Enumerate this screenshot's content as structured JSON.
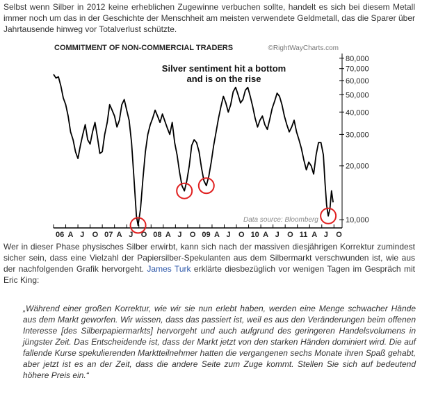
{
  "article": {
    "paragraph1": "Selbst wenn Silber in 2012 keine erheblichen Zugewinne verbuchen sollte, handelt es sich bei diesem Metall immer noch um das in der Geschichte der Menschheit am meisten verwendete Geldmetall, das die Sparer über Jahrtausende hinweg vor Totalverlust schützte.",
    "paragraph2_before": "Wer in dieser Phase physisches Silber erwirbt, kann sich nach der massiven diesjährigen Korrektur zumindest sicher sein, dass eine Vielzahl der Papiersilber-Spekulanten aus dem Silbermarkt verschwunden ist, wie aus der nachfolgenden Grafik hervorgeht.",
    "paragraph2_link": "James Turk",
    "paragraph2_after": "erklärte diesbezüglich vor wenigen Tagen im Gespräch mit Eric King:",
    "quote": "„Während einer großen Korrektur, wie wir sie nun erlebt haben, werden eine Menge schwacher Hände aus dem Markt geworfen. Wir wissen, dass das passiert ist, weil es aus den Veränderungen beim offenen Interesse [des Silberpapiermarkts] hervorgeht und auch aufgrund des geringeren Handelsvolumens in jüngster Zeit. Das Entscheidende ist, dass der Markt jetzt von den starken Händen dominiert wird. Die auf fallende Kurse spekulierenden Marktteilnehmer hatten die vergangenen sechs Monate ihren Spaß gehabt, aber jetzt ist es an der Zeit, dass die andere Seite zum Zuge kommt. Stellen Sie sich auf bedeutend höhere Preis ein.“"
  },
  "chart_data": {
    "type": "line",
    "title": "COMMITMENT OF  NON-COMMERCIAL TRADERS",
    "credit": "©RightWayCharts.com",
    "annotation_line1": "Silver sentiment hit a bottom",
    "annotation_line2": "and is on the rise",
    "source": "Data source: Bloomberg",
    "y_scale": "log",
    "ylim": [
      9000,
      85000
    ],
    "y_ticks": [
      10000,
      20000,
      30000,
      40000,
      50000,
      60000,
      70000,
      80000
    ],
    "y_tick_labels": [
      "10,000",
      "20,000",
      "30,000",
      "40,000",
      "50,000",
      "60,000",
      "70,000",
      "80,000"
    ],
    "x_tick_labels": [
      "06",
      "A",
      "J",
      "O",
      "07",
      "A",
      "J",
      "O",
      "08",
      "A",
      "J",
      "O",
      "09",
      "A",
      "J",
      "O",
      "10",
      "A",
      "J",
      "O",
      "11",
      "A",
      "J",
      "O"
    ],
    "xlim": [
      0,
      71
    ],
    "x_unit": "months since Jan 2006",
    "series": [
      {
        "values": [
          [
            0,
            65000
          ],
          [
            0.6,
            62000
          ],
          [
            1.2,
            63000
          ],
          [
            1.8,
            56000
          ],
          [
            2.4,
            48000
          ],
          [
            3,
            44000
          ],
          [
            3.6,
            38000
          ],
          [
            4.2,
            31000
          ],
          [
            4.8,
            28000
          ],
          [
            5.4,
            24000
          ],
          [
            6,
            22000
          ],
          [
            6.6,
            26000
          ],
          [
            7.2,
            30000
          ],
          [
            7.8,
            34000
          ],
          [
            8.4,
            28000
          ],
          [
            9,
            26500
          ],
          [
            9.6,
            31000
          ],
          [
            10.2,
            35000
          ],
          [
            10.8,
            29000
          ],
          [
            11.4,
            23500
          ],
          [
            12,
            24000
          ],
          [
            12.6,
            30000
          ],
          [
            13.2,
            35000
          ],
          [
            13.8,
            44000
          ],
          [
            14.4,
            41000
          ],
          [
            15,
            38000
          ],
          [
            15.6,
            33000
          ],
          [
            16.2,
            36000
          ],
          [
            16.8,
            44000
          ],
          [
            17.4,
            47000
          ],
          [
            18,
            41000
          ],
          [
            18.6,
            36000
          ],
          [
            19.2,
            27000
          ],
          [
            19.8,
            17000
          ],
          [
            20.4,
            10500
          ],
          [
            20.8,
            9300
          ],
          [
            21.4,
            11500
          ],
          [
            22,
            17000
          ],
          [
            22.6,
            24000
          ],
          [
            23.2,
            30000
          ],
          [
            23.8,
            34000
          ],
          [
            24.4,
            37000
          ],
          [
            25,
            41000
          ],
          [
            25.6,
            38000
          ],
          [
            26.2,
            35000
          ],
          [
            26.8,
            39000
          ],
          [
            27.4,
            35500
          ],
          [
            28,
            32500
          ],
          [
            28.6,
            30000
          ],
          [
            29.2,
            35000
          ],
          [
            29.8,
            27000
          ],
          [
            30.4,
            23000
          ],
          [
            31,
            18500
          ],
          [
            31.6,
            15500
          ],
          [
            32.2,
            14500
          ],
          [
            32.8,
            16500
          ],
          [
            33.4,
            20000
          ],
          [
            34,
            26000
          ],
          [
            34.6,
            28000
          ],
          [
            35.2,
            27000
          ],
          [
            35.8,
            24000
          ],
          [
            36.4,
            19500
          ],
          [
            37,
            16500
          ],
          [
            37.6,
            15500
          ],
          [
            38.2,
            17500
          ],
          [
            38.8,
            21000
          ],
          [
            39.4,
            26000
          ],
          [
            40,
            31000
          ],
          [
            40.6,
            37000
          ],
          [
            41.2,
            43000
          ],
          [
            41.8,
            49000
          ],
          [
            42.4,
            45000
          ],
          [
            43,
            40000
          ],
          [
            43.6,
            44000
          ],
          [
            44.2,
            52000
          ],
          [
            44.8,
            55000
          ],
          [
            45.4,
            50000
          ],
          [
            46,
            45000
          ],
          [
            46.6,
            47000
          ],
          [
            47.2,
            53000
          ],
          [
            47.8,
            55000
          ],
          [
            48.4,
            49000
          ],
          [
            49,
            43000
          ],
          [
            49.6,
            37000
          ],
          [
            50.2,
            33000
          ],
          [
            50.8,
            36000
          ],
          [
            51.4,
            38000
          ],
          [
            52,
            34000
          ],
          [
            52.6,
            32000
          ],
          [
            53.2,
            36500
          ],
          [
            53.8,
            42000
          ],
          [
            54.4,
            46000
          ],
          [
            55,
            51000
          ],
          [
            55.6,
            49000
          ],
          [
            56.2,
            44000
          ],
          [
            56.8,
            38000
          ],
          [
            57.4,
            34000
          ],
          [
            58,
            31000
          ],
          [
            58.6,
            33000
          ],
          [
            59.2,
            36000
          ],
          [
            59.8,
            31000
          ],
          [
            60.4,
            28000
          ],
          [
            61,
            25000
          ],
          [
            61.6,
            21500
          ],
          [
            62.2,
            19000
          ],
          [
            62.8,
            21000
          ],
          [
            63.4,
            20000
          ],
          [
            64,
            18000
          ],
          [
            64.6,
            23000
          ],
          [
            65.2,
            27000
          ],
          [
            65.8,
            27000
          ],
          [
            66.4,
            23000
          ],
          [
            66.8,
            16000
          ],
          [
            67.2,
            12000
          ],
          [
            67.6,
            10500
          ],
          [
            68,
            11500
          ],
          [
            68.4,
            14500
          ],
          [
            68.8,
            12500
          ]
        ]
      }
    ],
    "circled_lows": [
      [
        20.8,
        9300
      ],
      [
        32.2,
        14500
      ],
      [
        37.6,
        15500
      ],
      [
        67.6,
        10500
      ]
    ],
    "circle_color": "#e02020",
    "line_color": "#000000"
  }
}
